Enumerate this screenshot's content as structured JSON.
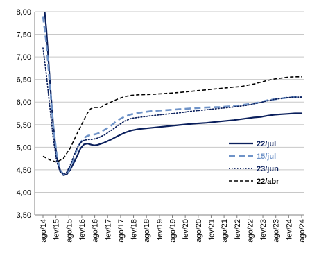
{
  "chart_data": {
    "type": "line",
    "title": "",
    "xlabel": "",
    "ylabel": "",
    "ylim": [
      3.5,
      8.0
    ],
    "yticks": [
      "8,00",
      "7,50",
      "7,00",
      "6,50",
      "6,00",
      "5,50",
      "5,00",
      "4,50",
      "4,00",
      "3,50"
    ],
    "xticks": [
      "ago/14",
      "fev/15",
      "ago/15",
      "fev/16",
      "ago/16",
      "fev/17",
      "ago/17",
      "fev/18",
      "ago/18",
      "fev/19",
      "ago/19",
      "fev/20",
      "ago/20",
      "fev/21",
      "ago/21",
      "fev/22",
      "ago/22",
      "fev/23",
      "ago/23",
      "fev/24",
      "ago/24"
    ],
    "grid": "horizontal",
    "legend_position": "right",
    "series": [
      {
        "name": "22/jul",
        "color": "#0a1f5c",
        "style": "solid",
        "points": [
          [
            0.0,
            8.4
          ],
          [
            0.25,
            7.6
          ],
          [
            0.5,
            6.5
          ],
          [
            0.75,
            5.5
          ],
          [
            1.0,
            4.8
          ],
          [
            1.25,
            4.5
          ],
          [
            1.5,
            4.38
          ],
          [
            1.75,
            4.4
          ],
          [
            2.0,
            4.5
          ],
          [
            2.25,
            4.65
          ],
          [
            2.5,
            4.8
          ],
          [
            2.75,
            4.97
          ],
          [
            3.0,
            5.06
          ],
          [
            3.25,
            5.08
          ],
          [
            3.5,
            5.06
          ],
          [
            3.75,
            5.04
          ],
          [
            4.0,
            5.05
          ],
          [
            4.5,
            5.1
          ],
          [
            5.0,
            5.17
          ],
          [
            5.5,
            5.25
          ],
          [
            6.0,
            5.32
          ],
          [
            6.5,
            5.37
          ],
          [
            7.0,
            5.4
          ],
          [
            8.0,
            5.43
          ],
          [
            9.0,
            5.46
          ],
          [
            10.0,
            5.49
          ],
          [
            11.0,
            5.52
          ],
          [
            12.0,
            5.54
          ],
          [
            13.0,
            5.57
          ],
          [
            14.0,
            5.6
          ],
          [
            15.0,
            5.64
          ],
          [
            15.5,
            5.66
          ],
          [
            16.0,
            5.67
          ],
          [
            16.5,
            5.7
          ],
          [
            17.0,
            5.72
          ],
          [
            17.5,
            5.73
          ],
          [
            18.0,
            5.74
          ],
          [
            18.5,
            5.75
          ],
          [
            19.0,
            5.75
          ]
        ]
      },
      {
        "name": "15/jul",
        "color": "#6f93c8",
        "style": "dashed",
        "points": [
          [
            0.0,
            7.9
          ],
          [
            0.25,
            7.3
          ],
          [
            0.5,
            6.4
          ],
          [
            0.75,
            5.5
          ],
          [
            1.0,
            4.85
          ],
          [
            1.25,
            4.5
          ],
          [
            1.5,
            4.4
          ],
          [
            1.75,
            4.42
          ],
          [
            2.0,
            4.55
          ],
          [
            2.25,
            4.75
          ],
          [
            2.5,
            4.95
          ],
          [
            2.75,
            5.1
          ],
          [
            3.0,
            5.2
          ],
          [
            3.25,
            5.25
          ],
          [
            3.5,
            5.27
          ],
          [
            3.75,
            5.28
          ],
          [
            4.0,
            5.3
          ],
          [
            4.5,
            5.38
          ],
          [
            5.0,
            5.48
          ],
          [
            5.5,
            5.6
          ],
          [
            6.0,
            5.68
          ],
          [
            6.5,
            5.73
          ],
          [
            7.0,
            5.76
          ],
          [
            8.0,
            5.8
          ],
          [
            9.0,
            5.82
          ],
          [
            10.0,
            5.84
          ],
          [
            11.0,
            5.86
          ],
          [
            12.0,
            5.88
          ],
          [
            13.0,
            5.89
          ],
          [
            14.0,
            5.91
          ],
          [
            15.0,
            5.95
          ],
          [
            15.5,
            5.97
          ],
          [
            16.0,
            6.0
          ],
          [
            16.5,
            6.04
          ],
          [
            17.0,
            6.06
          ],
          [
            17.5,
            6.08
          ],
          [
            18.0,
            6.1
          ],
          [
            18.5,
            6.11
          ],
          [
            19.0,
            6.11
          ]
        ]
      },
      {
        "name": "23/jun",
        "color": "#0a1f5c",
        "style": "dotted",
        "points": [
          [
            0.0,
            7.2
          ],
          [
            0.25,
            6.6
          ],
          [
            0.5,
            5.9
          ],
          [
            0.75,
            5.2
          ],
          [
            1.0,
            4.7
          ],
          [
            1.25,
            4.46
          ],
          [
            1.5,
            4.4
          ],
          [
            1.75,
            4.45
          ],
          [
            2.0,
            4.6
          ],
          [
            2.25,
            4.8
          ],
          [
            2.5,
            4.98
          ],
          [
            2.75,
            5.1
          ],
          [
            3.0,
            5.15
          ],
          [
            3.25,
            5.17
          ],
          [
            3.5,
            5.17
          ],
          [
            3.75,
            5.18
          ],
          [
            4.0,
            5.2
          ],
          [
            4.5,
            5.27
          ],
          [
            5.0,
            5.37
          ],
          [
            5.5,
            5.48
          ],
          [
            6.0,
            5.58
          ],
          [
            6.5,
            5.64
          ],
          [
            7.0,
            5.66
          ],
          [
            8.0,
            5.7
          ],
          [
            9.0,
            5.73
          ],
          [
            10.0,
            5.76
          ],
          [
            11.0,
            5.8
          ],
          [
            12.0,
            5.83
          ],
          [
            13.0,
            5.86
          ],
          [
            14.0,
            5.89
          ],
          [
            15.0,
            5.93
          ],
          [
            15.5,
            5.96
          ],
          [
            16.0,
            5.99
          ],
          [
            16.5,
            6.03
          ],
          [
            17.0,
            6.06
          ],
          [
            17.5,
            6.08
          ],
          [
            18.0,
            6.1
          ],
          [
            18.5,
            6.11
          ],
          [
            19.0,
            6.11
          ]
        ]
      },
      {
        "name": "22/abr",
        "color": "#000000",
        "style": "dashed",
        "points": [
          [
            0.0,
            4.8
          ],
          [
            0.5,
            4.72
          ],
          [
            1.0,
            4.67
          ],
          [
            1.5,
            4.75
          ],
          [
            2.0,
            4.98
          ],
          [
            2.5,
            5.3
          ],
          [
            3.0,
            5.6
          ],
          [
            3.25,
            5.75
          ],
          [
            3.5,
            5.85
          ],
          [
            3.75,
            5.88
          ],
          [
            4.0,
            5.88
          ],
          [
            4.25,
            5.88
          ],
          [
            4.5,
            5.93
          ],
          [
            5.0,
            6.0
          ],
          [
            5.5,
            6.07
          ],
          [
            6.0,
            6.12
          ],
          [
            6.5,
            6.15
          ],
          [
            7.0,
            6.16
          ],
          [
            8.0,
            6.17
          ],
          [
            9.0,
            6.19
          ],
          [
            10.0,
            6.21
          ],
          [
            11.0,
            6.24
          ],
          [
            12.0,
            6.27
          ],
          [
            13.0,
            6.3
          ],
          [
            14.0,
            6.33
          ],
          [
            14.5,
            6.34
          ],
          [
            15.0,
            6.37
          ],
          [
            15.5,
            6.4
          ],
          [
            16.0,
            6.44
          ],
          [
            16.5,
            6.48
          ],
          [
            17.0,
            6.51
          ],
          [
            17.5,
            6.53
          ],
          [
            18.0,
            6.55
          ],
          [
            18.5,
            6.56
          ],
          [
            19.0,
            6.56
          ]
        ]
      }
    ]
  }
}
